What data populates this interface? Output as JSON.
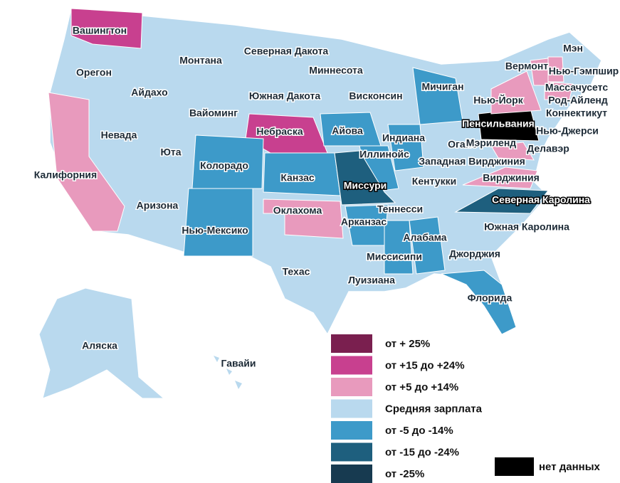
{
  "states": [
    {
      "label": "Вашингтон",
      "color": "#c8408f"
    },
    {
      "label": "Орегон",
      "color": "#b9d9ee"
    },
    {
      "label": "Айдахо",
      "color": "#b9d9ee"
    },
    {
      "label": "Монтана",
      "color": "#b9d9ee"
    },
    {
      "label": "Северная Дакота",
      "color": "#b9d9ee"
    },
    {
      "label": "Миннесота",
      "color": "#b9d9ee"
    },
    {
      "label": "Южная Дакота",
      "color": "#b9d9ee"
    },
    {
      "label": "Висконсин",
      "color": "#b9d9ee"
    },
    {
      "label": "Мичиган",
      "color": "#3d9ac9"
    },
    {
      "label": "Вайоминг",
      "color": "#b9d9ee"
    },
    {
      "label": "Небраска",
      "color": "#c8408f"
    },
    {
      "label": "Айова",
      "color": "#3d9ac9"
    },
    {
      "label": "Калифорния",
      "color": "#e89abd"
    },
    {
      "label": "Невада",
      "color": "#b9d9ee"
    },
    {
      "label": "Юта",
      "color": "#b9d9ee"
    },
    {
      "label": "Колорадо",
      "color": "#3d9ac9"
    },
    {
      "label": "Канзас",
      "color": "#3d9ac9"
    },
    {
      "label": "Иллинойс",
      "color": "#3d9ac9"
    },
    {
      "label": "Индиана",
      "color": "#3d9ac9"
    },
    {
      "label": "Огайо",
      "color": "#b9d9ee"
    },
    {
      "label": "Миссури",
      "color": "#1e5f7e"
    },
    {
      "label": "Оклахома",
      "color": "#e89abd"
    },
    {
      "label": "Аризона",
      "color": "#b9d9ee"
    },
    {
      "label": "Нью-Мексико",
      "color": "#3d9ac9"
    },
    {
      "label": "Техас",
      "color": "#b9d9ee"
    },
    {
      "label": "Арканзас",
      "color": "#3d9ac9"
    },
    {
      "label": "Теннесси",
      "color": "#b9d9ee"
    },
    {
      "label": "Кентукки",
      "color": "#b9d9ee"
    },
    {
      "label": "Алабама",
      "color": "#3d9ac9"
    },
    {
      "label": "Миссисипи",
      "color": "#3d9ac9"
    },
    {
      "label": "Луизиана",
      "color": "#b9d9ee"
    },
    {
      "label": "Джорджия",
      "color": "#b9d9ee"
    },
    {
      "label": "Флорида",
      "color": "#3d9ac9"
    },
    {
      "label": "Северная Каролина",
      "color": "#1e5f7e"
    },
    {
      "label": "Южная Каролина",
      "color": "#b9d9ee"
    },
    {
      "label": "Западная Вирджиния",
      "color": "#b9d9ee"
    },
    {
      "label": "Вирджиния",
      "color": "#e89abd"
    },
    {
      "label": "Мэриленд",
      "color": "#e89abd"
    },
    {
      "label": "Делавэр",
      "color": "#b9d9ee"
    },
    {
      "label": "Пенсильвания",
      "color": "#000000"
    },
    {
      "label": "Нью-Йорк",
      "color": "#e89abd"
    },
    {
      "label": "Нью-Джерси",
      "color": "#b9d9ee"
    },
    {
      "label": "Коннектикут",
      "color": "#b9d9ee"
    },
    {
      "label": "Род-Айленд",
      "color": "#b9d9ee"
    },
    {
      "label": "Массачусетс",
      "color": "#e89abd"
    },
    {
      "label": "Нью-Гэмпшир",
      "color": "#e89abd"
    },
    {
      "label": "Вермонт",
      "color": "#e89abd"
    },
    {
      "label": "Мэн",
      "color": "#b9d9ee"
    },
    {
      "label": "Аляска",
      "color": "#b9d9ee"
    },
    {
      "label": "Гавайи",
      "color": "#b9d9ee"
    }
  ],
  "legend": [
    {
      "label": "от + 25%",
      "color": "#7a1f4f"
    },
    {
      "label": "от +15 до +24%",
      "color": "#c8408f"
    },
    {
      "label": "от +5 до +14%",
      "color": "#e89abd"
    },
    {
      "label": "Средняя зарплата",
      "color": "#b9d9ee"
    },
    {
      "label": "от -5 до -14%",
      "color": "#3d9ac9"
    },
    {
      "label": "от -15 до -24%",
      "color": "#1e5f7e"
    },
    {
      "label": "от -25%",
      "color": "#173a50"
    },
    {
      "label": "нет данных",
      "color": "#000000"
    }
  ]
}
